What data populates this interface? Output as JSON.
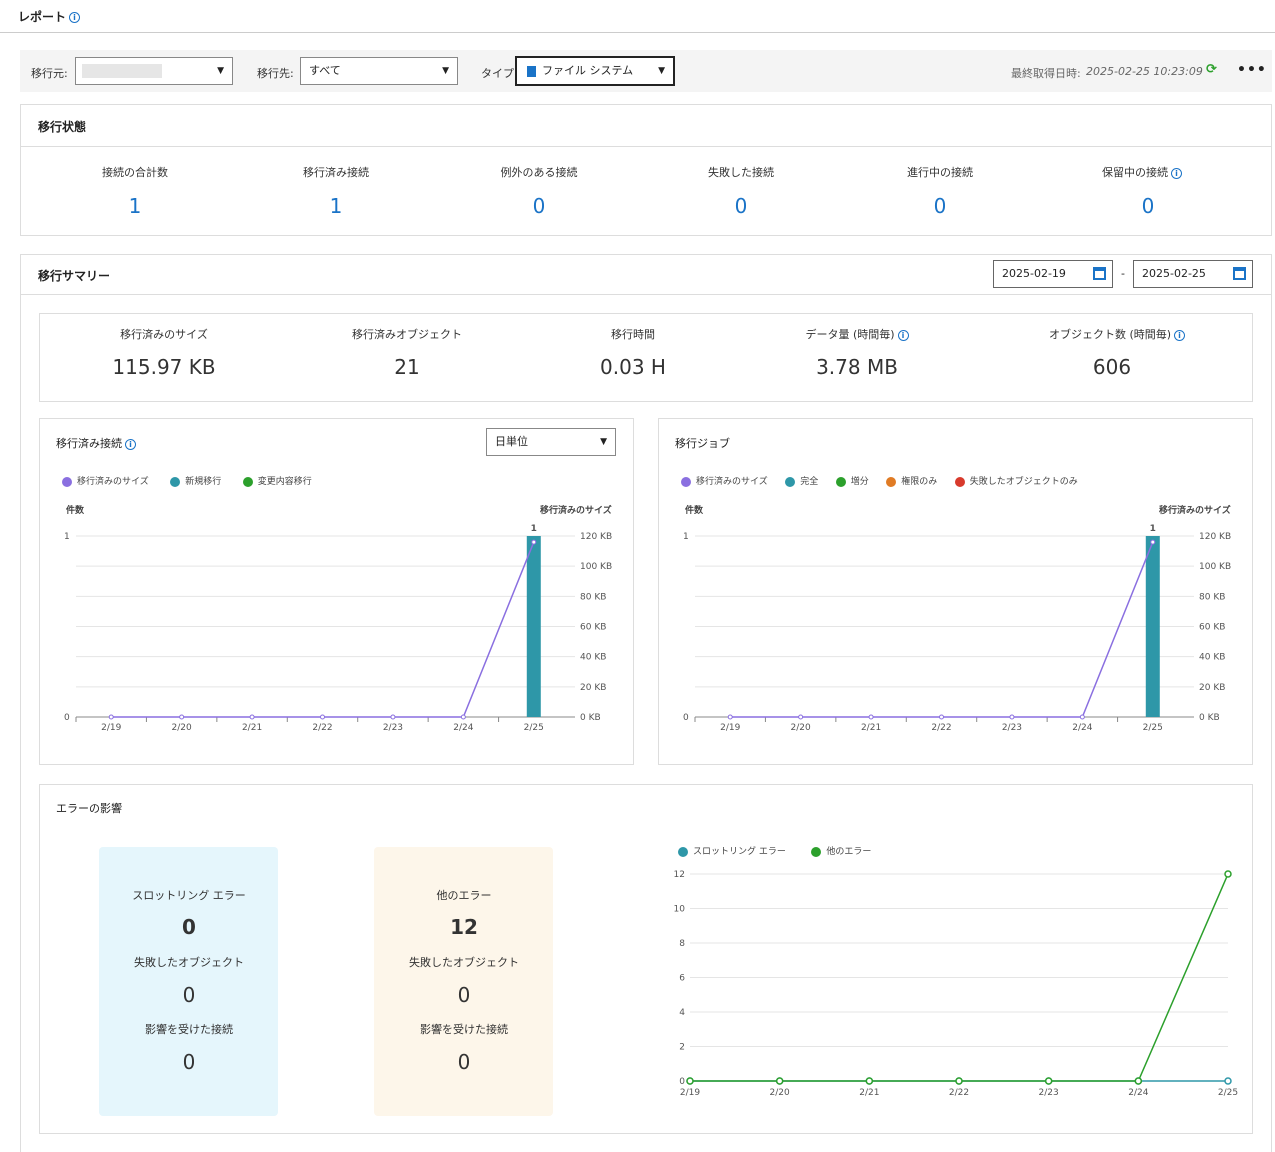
{
  "header": {
    "title": "レポート"
  },
  "filters": {
    "source_label": "移行元:",
    "source_value": "",
    "dest_label": "移行先:",
    "dest_value": "すべて",
    "type_label": "タイプ:",
    "type_value": "ファイル システム",
    "last_fetched_label": "最終取得日時:",
    "last_fetched_value": "2025-02-25 10:23:09",
    "more_label": "•••"
  },
  "status": {
    "title": "移行状態",
    "items": [
      {
        "label": "接続の合計数",
        "value": "1"
      },
      {
        "label": "移行済み接続",
        "value": "1"
      },
      {
        "label": "例外のある接続",
        "value": "0"
      },
      {
        "label": "失敗した接続",
        "value": "0"
      },
      {
        "label": "進行中の接続",
        "value": "0"
      },
      {
        "label": "保留中の接続",
        "value": "0"
      }
    ]
  },
  "summary": {
    "title": "移行サマリー",
    "date_from": "2025-02-19",
    "date_sep": "-",
    "date_to": "2025-02-25",
    "items": [
      {
        "label": "移行済みのサイズ",
        "value": "115.97 KB"
      },
      {
        "label": "移行済みオブジェクト",
        "value": "21"
      },
      {
        "label": "移行時間",
        "value": "0.03 H"
      },
      {
        "label": "データ量 (時間毎)",
        "value": "3.78 MB"
      },
      {
        "label": "オブジェクト数 (時間毎)",
        "value": "606"
      }
    ]
  },
  "conn_chart": {
    "title": "移行済み接続",
    "granularity": "日単位",
    "legend": [
      {
        "name": "移行済みのサイズ",
        "color": "#8a6fe0"
      },
      {
        "name": "新規移行",
        "color": "#2e97a8"
      },
      {
        "name": "変更内容移行",
        "color": "#2ca02c"
      }
    ],
    "left_axis_title": "件数",
    "right_axis_title": "移行済みのサイズ"
  },
  "job_chart": {
    "title": "移行ジョブ",
    "legend": [
      {
        "name": "移行済みのサイズ",
        "color": "#8a6fe0"
      },
      {
        "name": "完全",
        "color": "#2e97a8"
      },
      {
        "name": "増分",
        "color": "#2ca02c"
      },
      {
        "name": "権限のみ",
        "color": "#e07b24"
      },
      {
        "name": "失敗したオブジェクトのみ",
        "color": "#d83a2c"
      }
    ],
    "left_axis_title": "件数",
    "right_axis_title": "移行済みのサイズ"
  },
  "errors": {
    "title": "エラーの影響",
    "throttle": {
      "title": "スロットリング エラー",
      "count": "0",
      "failed_label": "失敗したオブジェクト",
      "failed_value": "0",
      "affected_label": "影響を受けた接続",
      "affected_value": "0"
    },
    "other": {
      "title": "他のエラー",
      "count": "12",
      "failed_label": "失敗したオブジェクト",
      "failed_value": "0",
      "affected_label": "影響を受けた接続",
      "affected_value": "0"
    },
    "legend": [
      {
        "name": "スロットリング エラー",
        "color": "#2e97a8"
      },
      {
        "name": "他のエラー",
        "color": "#2ca02c"
      }
    ]
  },
  "chart_data": [
    {
      "type": "bar",
      "title": "移行済み接続",
      "categories": [
        "2/19",
        "2/20",
        "2/21",
        "2/22",
        "2/23",
        "2/24",
        "2/25"
      ],
      "ylabel": "件数",
      "y2label": "移行済みのサイズ",
      "ylim": [
        0,
        1
      ],
      "y_ticks": [
        "0",
        "1"
      ],
      "y2lim": [
        0,
        120
      ],
      "y2_ticks": [
        "0 KB",
        "20 KB",
        "40 KB",
        "60 KB",
        "80 KB",
        "100 KB",
        "120 KB"
      ],
      "series": [
        {
          "name": "新規移行",
          "kind": "bar",
          "color": "#2e97a8",
          "values": [
            0,
            0,
            0,
            0,
            0,
            0,
            1
          ],
          "labels": [
            "",
            "",
            "",
            "",
            "",
            "",
            "1"
          ]
        },
        {
          "name": "変更内容移行",
          "kind": "bar",
          "color": "#2ca02c",
          "values": [
            0,
            0,
            0,
            0,
            0,
            0,
            0
          ]
        },
        {
          "name": "移行済みのサイズ",
          "kind": "line",
          "axis": "right",
          "color": "#8a6fe0",
          "values": [
            0,
            0,
            0,
            0,
            0,
            0,
            115.97
          ]
        }
      ]
    },
    {
      "type": "bar",
      "title": "移行ジョブ",
      "categories": [
        "2/19",
        "2/20",
        "2/21",
        "2/22",
        "2/23",
        "2/24",
        "2/25"
      ],
      "ylabel": "件数",
      "y2label": "移行済みのサイズ",
      "ylim": [
        0,
        1
      ],
      "y_ticks": [
        "0",
        "1"
      ],
      "y2lim": [
        0,
        120
      ],
      "y2_ticks": [
        "0 KB",
        "20 KB",
        "40 KB",
        "60 KB",
        "80 KB",
        "100 KB",
        "120 KB"
      ],
      "series": [
        {
          "name": "完全",
          "kind": "bar",
          "color": "#2e97a8",
          "values": [
            0,
            0,
            0,
            0,
            0,
            0,
            1
          ],
          "labels": [
            "",
            "",
            "",
            "",
            "",
            "",
            "1"
          ]
        },
        {
          "name": "移行済みのサイズ",
          "kind": "line",
          "axis": "right",
          "color": "#8a6fe0",
          "values": [
            0,
            0,
            0,
            0,
            0,
            0,
            115.97
          ]
        }
      ]
    },
    {
      "type": "line",
      "title": "",
      "categories": [
        "2/19",
        "2/20",
        "2/21",
        "2/22",
        "2/23",
        "2/24",
        "2/25"
      ],
      "ylim": [
        0,
        12
      ],
      "y_ticks": [
        "0",
        "2",
        "4",
        "6",
        "8",
        "10",
        "12"
      ],
      "series": [
        {
          "name": "スロットリング エラー",
          "color": "#2e97a8",
          "values": [
            0,
            0,
            0,
            0,
            0,
            0,
            0
          ]
        },
        {
          "name": "他のエラー",
          "color": "#2ca02c",
          "values": [
            0,
            0,
            0,
            0,
            0,
            0,
            12
          ]
        }
      ]
    }
  ]
}
